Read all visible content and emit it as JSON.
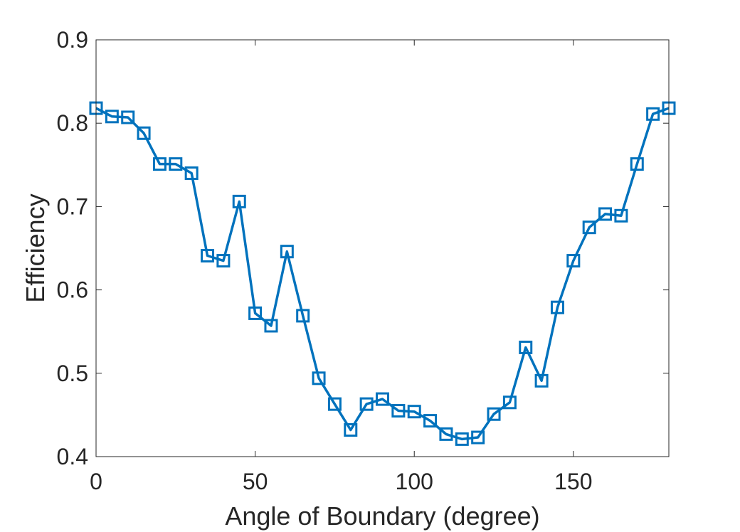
{
  "chart_data": {
    "type": "line",
    "title": "",
    "xlabel": "Angle of Boundary (degree)",
    "ylabel": "Efficiency",
    "xlim": [
      0,
      180
    ],
    "ylim": [
      0.4,
      0.9
    ],
    "xticks": [
      0,
      50,
      100,
      150
    ],
    "yticks": [
      0.4,
      0.5,
      0.6,
      0.7,
      0.8,
      0.9
    ],
    "xtick_labels": [
      "0",
      "50",
      "100",
      "150"
    ],
    "ytick_labels": [
      "0.4",
      "0.5",
      "0.6",
      "0.7",
      "0.8",
      "0.9"
    ],
    "grid": false,
    "legend": "none",
    "marker": "square",
    "color": "#0072BD",
    "series": [
      {
        "x": [
          0,
          5,
          10,
          15,
          20,
          25,
          30,
          35,
          40,
          45,
          50,
          55,
          60,
          65,
          70,
          75,
          80,
          85,
          90,
          95,
          100,
          105,
          110,
          115,
          120,
          125,
          130,
          135,
          140,
          145,
          150,
          155,
          160,
          165,
          170,
          175,
          180
        ],
        "values": [
          0.818,
          0.808,
          0.807,
          0.788,
          0.751,
          0.751,
          0.74,
          0.641,
          0.635,
          0.706,
          0.572,
          0.557,
          0.646,
          0.569,
          0.494,
          0.463,
          0.432,
          0.463,
          0.469,
          0.455,
          0.454,
          0.443,
          0.427,
          0.421,
          0.423,
          0.451,
          0.465,
          0.531,
          0.491,
          0.579,
          0.635,
          0.675,
          0.691,
          0.689,
          0.751,
          0.811,
          0.818
        ]
      }
    ]
  }
}
